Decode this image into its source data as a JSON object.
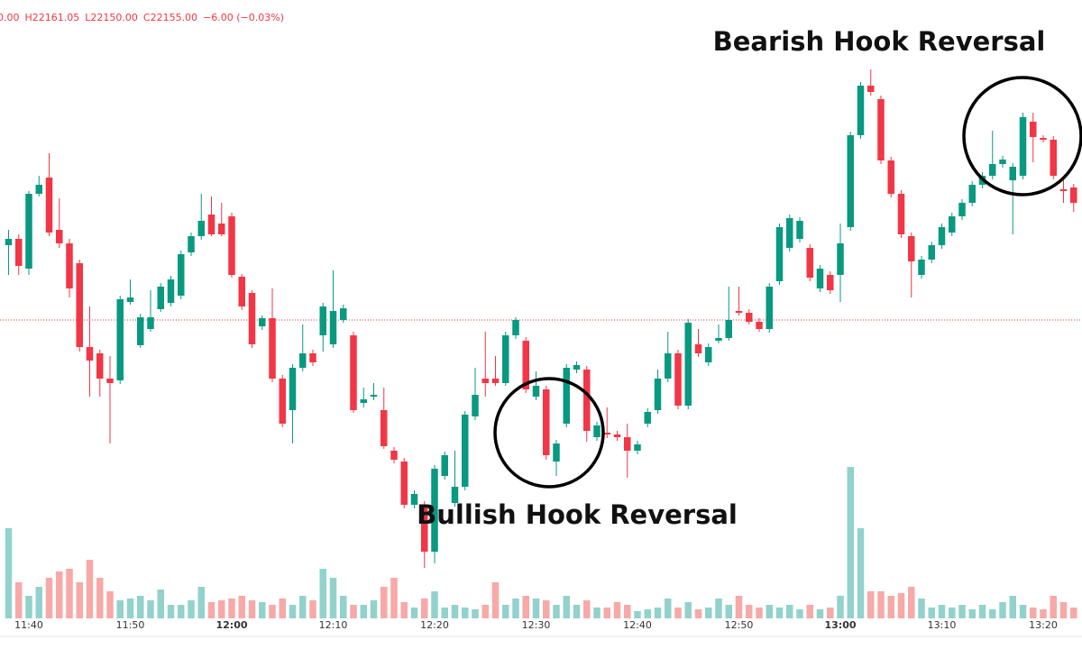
{
  "chart_data": {
    "type": "candlestick",
    "header": [
      "0.00",
      "H22161.05",
      "L22150.00",
      "C22155.00",
      "−6.00 (−0.03%)"
    ],
    "annotations": [
      "Bearish Hook Reversal",
      "Bullish Hook Reversal"
    ],
    "categories": [
      null,
      null,
      "11:40",
      null,
      null,
      null,
      null,
      null,
      null,
      null,
      null,
      null,
      "11:50",
      null,
      null,
      null,
      null,
      null,
      null,
      null,
      null,
      null,
      "12:00",
      null,
      null,
      null,
      null,
      null,
      null,
      null,
      null,
      null,
      "12:10",
      null,
      null,
      null,
      null,
      null,
      null,
      null,
      null,
      null,
      "12:20",
      null,
      null,
      null,
      null,
      null,
      null,
      null,
      null,
      null,
      "12:30",
      null,
      null,
      null,
      null,
      null,
      null,
      null,
      null,
      null,
      "12:40",
      null,
      null,
      null,
      null,
      null,
      null,
      null,
      null,
      null,
      "12:50",
      null,
      null,
      null,
      null,
      null,
      null,
      null,
      null,
      null,
      "13:00",
      null,
      null,
      null,
      null,
      null,
      null,
      null,
      null,
      null,
      "13:10",
      null,
      null,
      null,
      null,
      null,
      null,
      null,
      null,
      null,
      "13:20",
      null,
      null,
      null
    ],
    "open": [
      22204,
      22207.5,
      22191,
      22232.5,
      22241.5,
      22212.5,
      22205,
      22194,
      22147.5,
      22144,
      22130,
      22129,
      22172.5,
      22148.5,
      22157.5,
      22168.5,
      22172,
      22176,
      22200,
      22209,
      22221,
      22216,
      22220,
      22186.5,
      22177.5,
      22159,
      22163.5,
      22130,
      22112.5,
      22136,
      22144,
      22154,
      22149,
      22162.5,
      22154,
      22116.5,
      22120,
      22112.5,
      22090,
      22084,
      22060,
      22060,
      22034,
      22076,
      22061,
      22070,
      22109,
      22130,
      22130,
      22127.5,
      22154,
      22151,
      22120,
      22124,
      22084,
      22105,
      22135,
      22135,
      22097.5,
      22100,
      22099,
      22097.5,
      22090,
      22105,
      22112.5,
      22130,
      22144,
      22115,
      22149,
      22139,
      22151,
      22152.5,
      22167.5,
      22166.5,
      22161.5,
      22157.5,
      22184,
      22202.5,
      22207.5,
      22202.5,
      22180,
      22187.5,
      22187.5,
      22214,
      22265,
      22292.5,
      22285,
      22251,
      22232.5,
      22209,
      22187.5,
      22196,
      22204,
      22211,
      22220,
      22227.5,
      22237.5,
      22242.5,
      22249,
      22240,
      22242.5,
      22272.5,
      22263.5,
      22262.5,
      22235,
      22236
    ],
    "high": [
      22212.5,
      22210,
      22234,
      22242.5,
      22255,
      22230,
      22207.5,
      22196,
      22170,
      22146,
      22142.5,
      22176,
      22185,
      22166,
      22179,
      22183,
      22187,
      22201,
      22211,
      22232.5,
      22231,
      22227.5,
      22222,
      22188,
      22179,
      22165,
      22180,
      22132,
      22138,
      22160,
      22146,
      22172,
      22190,
      22171,
      22156,
      22125,
      22127.5,
      22125,
      22092,
      22086,
      22068,
      22062,
      22082,
      22089.5,
      22090,
      22112,
      22136,
      22156,
      22142.5,
      22156,
      22164,
      22153,
      22134,
      22126,
      22096,
      22138,
      22139.5,
      22137,
      22106,
      22114,
      22101,
      22105,
      22095.5,
      22113.5,
      22135,
      22156,
      22146,
      22163,
      22157.5,
      22149.5,
      22160,
      22181,
      22181,
      22168.5,
      22163.5,
      22183,
      22216,
      22221,
      22219.5,
      22204.5,
      22193,
      22189.5,
      22216,
      22267,
      22294.5,
      22301.5,
      22287,
      22253,
      22234.5,
      22211,
      22198,
      22206,
      22216,
      22222,
      22229.5,
      22239.5,
      22244.5,
      22267.5,
      22253.5,
      22249.5,
      22277.5,
      22277.5,
      22265,
      22264.5,
      22240,
      22238
    ],
    "low": [
      22187.5,
      22187.5,
      22187.5,
      22231,
      22209,
      22202.5,
      22175,
      22145,
      22120,
      22120,
      22094,
      22127,
      22171,
      22147,
      22156,
      22167,
      22170,
      22174,
      22198,
      22207,
      22209,
      22209,
      22186,
      22168,
      22147,
      22157,
      22128,
      22103,
      22094,
      22134,
      22137,
      22145,
      22147,
      22161,
      22111,
      22114,
      22118,
      22091,
      22083,
      22058,
      22058,
      22025,
      22027.5,
      22074,
      22059,
      22068,
      22107,
      22120,
      22126,
      22126,
      22152,
      22122,
      22118,
      22085,
      22076,
      22103,
      22133,
      22095,
      22095.5,
      22097,
      22095.5,
      22075,
      22088,
      22103,
      22110.5,
      22128,
      22113,
      22113,
      22142,
      22137,
      22149.5,
      22151,
      22165,
      22160,
      22156,
      22155.5,
      22182,
      22200.5,
      22205.5,
      22184,
      22178,
      22177,
      22172.5,
      22212,
      22263,
      22287,
      22249,
      22230.5,
      22208,
      22175,
      22185.5,
      22194,
      22202,
      22209,
      22218,
      22225.5,
      22235.5,
      22240.5,
      22247,
      22210,
      22240.5,
      22250,
      22261,
      22240.5,
      22227.5,
      22222.5
    ],
    "close": [
      22207.5,
      22192.5,
      22232.5,
      22237.5,
      22211,
      22205,
      22180,
      22147.5,
      22140,
      22130,
      22127.5,
      22174,
      22175,
      22164,
      22164,
      22181,
      22185,
      22199,
      22209,
      22217.5,
      22210,
      22210,
      22187.5,
      22170,
      22149,
      22163.5,
      22130,
      22105,
      22136,
      22144,
      22139,
      22170,
      22167.5,
      22169,
      22112.5,
      22118.5,
      22121,
      22092.5,
      22085,
      22060,
      22066,
      22034,
      22080,
      22087.5,
      22070,
      22110,
      22121,
      22127.5,
      22127.5,
      22154,
      22162.5,
      22124,
      22126,
      22087.5,
      22094,
      22136,
      22137.5,
      22101,
      22104,
      22099,
      22097.5,
      22090,
      22093.5,
      22111.5,
      22130,
      22144,
      22115,
      22161,
      22144,
      22147.5,
      22152.5,
      22162.5,
      22166.5,
      22161.5,
      22157.5,
      22181,
      22214,
      22219,
      22217.5,
      22186,
      22191,
      22179,
      22205,
      22265,
      22292.5,
      22289,
      22251,
      22232.5,
      22210,
      22195,
      22196,
      22204,
      22214,
      22220,
      22227.5,
      22237.5,
      22242.5,
      22249,
      22251.5,
      22247.5,
      22275,
      22264,
      22262.5,
      22242.5,
      22234,
      22227.5
    ],
    "volume": [
      100,
      40,
      25,
      35,
      45,
      52,
      55,
      40,
      65,
      45,
      30,
      20,
      22,
      25,
      20,
      32,
      15,
      15,
      20,
      35,
      18,
      20,
      22,
      25,
      20,
      18,
      15,
      22,
      15,
      25,
      20,
      55,
      45,
      25,
      15,
      15,
      20,
      35,
      45,
      18,
      12,
      22,
      30,
      12,
      15,
      12,
      10,
      15,
      40,
      15,
      22,
      25,
      22,
      20,
      15,
      25,
      15,
      20,
      12,
      12,
      18,
      15,
      8,
      10,
      12,
      22,
      12,
      18,
      10,
      12,
      22,
      15,
      25,
      15,
      12,
      15,
      12,
      15,
      10,
      15,
      10,
      12,
      25,
      168,
      100,
      30,
      30,
      25,
      28,
      35,
      22,
      12,
      15,
      12,
      15,
      10,
      15,
      10,
      18,
      25,
      15,
      12,
      10,
      25,
      18,
      12
    ],
    "price_line": 22162.5,
    "ylim": [
      22000,
      22340
    ],
    "volume_ylim": [
      0,
      300
    ],
    "up_color": "#089981",
    "down_color": "#f23645",
    "up_volume_color": "#92d2cc",
    "down_volume_color": "#f7a9a7"
  }
}
